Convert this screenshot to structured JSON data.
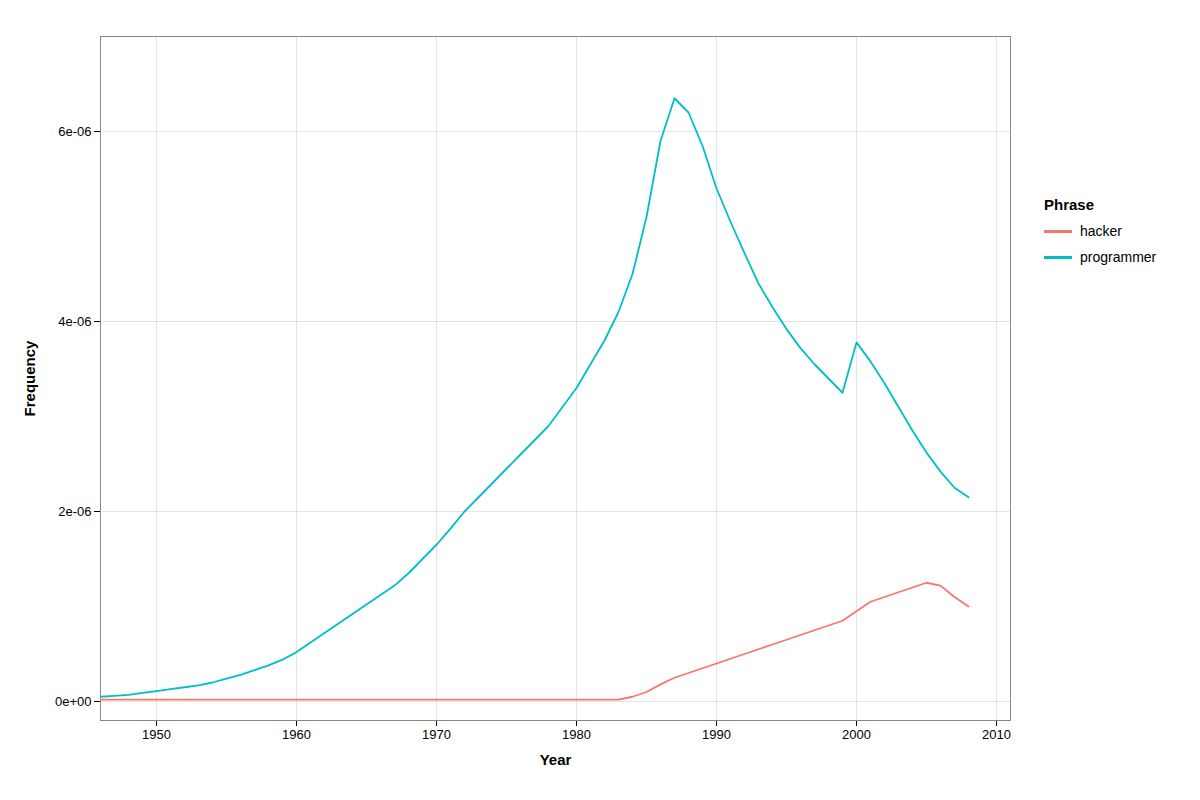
{
  "chart_data": {
    "type": "line",
    "x_label": "Year",
    "y_label": "Frequency",
    "legend_title": "Phrase",
    "legend": "right",
    "grid": true,
    "xlim": [
      1946,
      2011
    ],
    "xticks": [
      1950,
      1960,
      1970,
      1980,
      1990,
      2000,
      2010
    ],
    "ylim": [
      -2e-07,
      7e-06
    ],
    "yticks": [
      {
        "value": 0,
        "label": "0e+00"
      },
      {
        "value": 2e-06,
        "label": "2e-06"
      },
      {
        "value": 4e-06,
        "label": "4e-06"
      },
      {
        "value": 6e-06,
        "label": "6e-06"
      }
    ],
    "x": [
      1946,
      1947,
      1948,
      1949,
      1950,
      1951,
      1952,
      1953,
      1954,
      1955,
      1956,
      1957,
      1958,
      1959,
      1960,
      1961,
      1962,
      1963,
      1964,
      1965,
      1966,
      1967,
      1968,
      1969,
      1970,
      1971,
      1972,
      1973,
      1974,
      1975,
      1976,
      1977,
      1978,
      1979,
      1980,
      1981,
      1982,
      1983,
      1984,
      1985,
      1986,
      1987,
      1988,
      1989,
      1990,
      1991,
      1992,
      1993,
      1994,
      1995,
      1996,
      1997,
      1998,
      1999,
      2000,
      2001,
      2002,
      2003,
      2004,
      2005,
      2006,
      2007,
      2008
    ],
    "series": [
      {
        "name": "hacker",
        "color": "#F8766D",
        "values": [
          2e-08,
          2e-08,
          2e-08,
          2e-08,
          2e-08,
          2e-08,
          2e-08,
          2e-08,
          2e-08,
          2e-08,
          2e-08,
          2e-08,
          2e-08,
          2e-08,
          2e-08,
          2e-08,
          2e-08,
          2e-08,
          2e-08,
          2e-08,
          2e-08,
          2e-08,
          2e-08,
          2e-08,
          2e-08,
          2e-08,
          2e-08,
          2e-08,
          2e-08,
          2e-08,
          2e-08,
          2e-08,
          2e-08,
          2e-08,
          2e-08,
          2e-08,
          2e-08,
          2e-08,
          5e-08,
          1e-07,
          1.8e-07,
          2.5e-07,
          3e-07,
          3.5e-07,
          4e-07,
          4.5e-07,
          5e-07,
          5.5e-07,
          6e-07,
          6.5e-07,
          7e-07,
          7.5e-07,
          8e-07,
          8.5e-07,
          9.5e-07,
          1.05e-06,
          1.1e-06,
          1.15e-06,
          1.2e-06,
          1.25e-06,
          1.22e-06,
          1.1e-06,
          1e-06
        ]
      },
      {
        "name": "programmer",
        "color": "#00BFC4",
        "values": [
          5e-08,
          6e-08,
          7e-08,
          9e-08,
          1.1e-07,
          1.3e-07,
          1.5e-07,
          1.7e-07,
          2e-07,
          2.4e-07,
          2.8e-07,
          3.3e-07,
          3.8e-07,
          4.4e-07,
          5.2e-07,
          6.2e-07,
          7.2e-07,
          8.2e-07,
          9.2e-07,
          1.02e-06,
          1.12e-06,
          1.22e-06,
          1.35e-06,
          1.5e-06,
          1.65e-06,
          1.82e-06,
          2e-06,
          2.15e-06,
          2.3e-06,
          2.45e-06,
          2.6e-06,
          2.75e-06,
          2.9e-06,
          3.1e-06,
          3.3e-06,
          3.55e-06,
          3.8e-06,
          4.1e-06,
          4.5e-06,
          5.1e-06,
          5.9e-06,
          6.35e-06,
          6.2e-06,
          5.85e-06,
          5.4e-06,
          5.05e-06,
          4.72e-06,
          4.4e-06,
          4.15e-06,
          3.92e-06,
          3.72e-06,
          3.55e-06,
          3.4e-06,
          3.25e-06,
          3.78e-06,
          3.58e-06,
          3.35e-06,
          3.1e-06,
          2.85e-06,
          2.62e-06,
          2.42e-06,
          2.25e-06,
          2.15e-06
        ]
      }
    ]
  }
}
